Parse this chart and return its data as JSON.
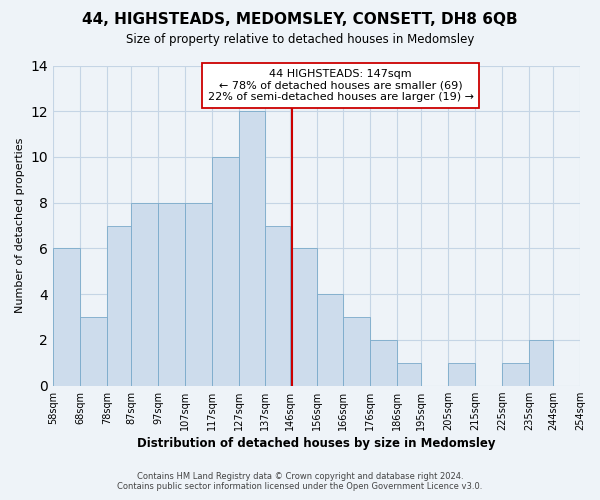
{
  "title": "44, HIGHSTEADS, MEDOMSLEY, CONSETT, DH8 6QB",
  "subtitle": "Size of property relative to detached houses in Medomsley",
  "xlabel": "Distribution of detached houses by size in Medomsley",
  "ylabel": "Number of detached properties",
  "bin_edges": [
    58,
    68,
    78,
    87,
    97,
    107,
    117,
    127,
    137,
    146,
    156,
    166,
    176,
    186,
    195,
    205,
    215,
    225,
    235,
    244,
    254
  ],
  "bar_heights": [
    6,
    3,
    7,
    8,
    8,
    8,
    10,
    12,
    7,
    6,
    4,
    3,
    2,
    1,
    0,
    1,
    0,
    1,
    2,
    0
  ],
  "bar_color": "#cddcec",
  "bar_edge_color": "#7aaaca",
  "vline_x": 147,
  "vline_color": "#cc0000",
  "annotation_text": "44 HIGHSTEADS: 147sqm\n← 78% of detached houses are smaller (69)\n22% of semi-detached houses are larger (19) →",
  "annotation_box_color": "#ffffff",
  "annotation_box_edge_color": "#cc0000",
  "ylim": [
    0,
    14
  ],
  "yticks": [
    0,
    2,
    4,
    6,
    8,
    10,
    12,
    14
  ],
  "grid_color": "#c5d5e5",
  "footer_line1": "Contains HM Land Registry data © Crown copyright and database right 2024.",
  "footer_line2": "Contains public sector information licensed under the Open Government Licence v3.0.",
  "bg_color": "#eef3f8"
}
